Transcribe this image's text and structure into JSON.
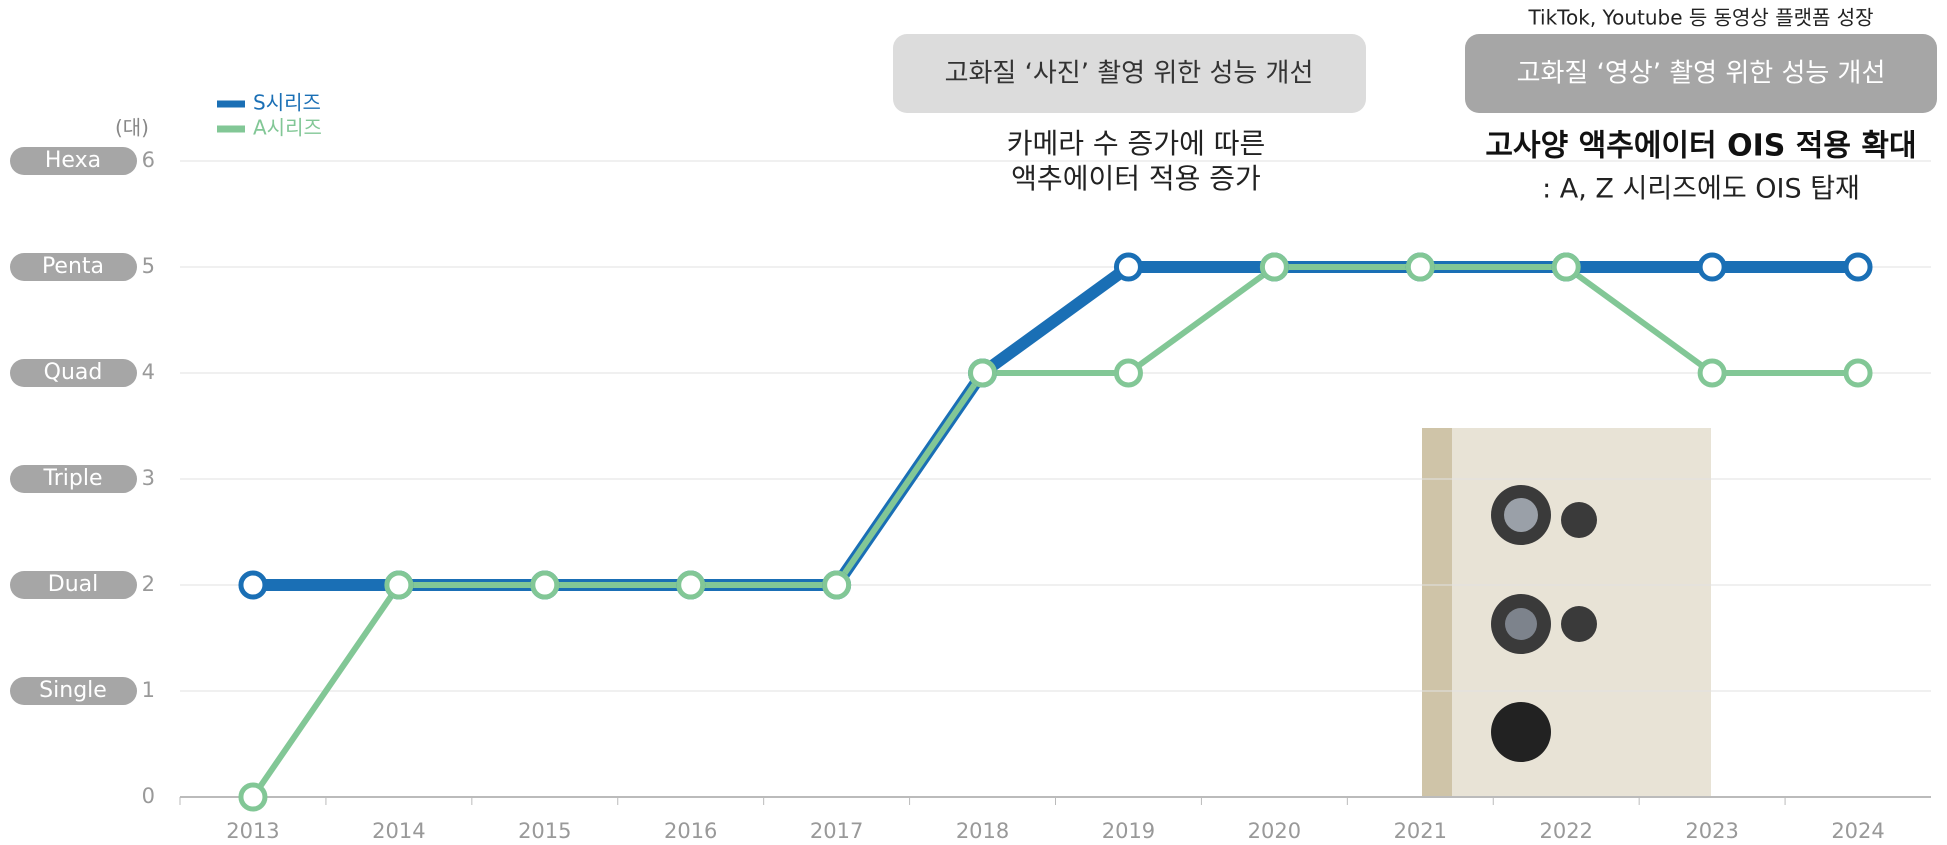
{
  "chart_data": {
    "type": "line",
    "categories": [
      "2013",
      "2014",
      "2015",
      "2016",
      "2017",
      "2018",
      "2019",
      "2020",
      "2021",
      "2022",
      "2023",
      "2024"
    ],
    "series": [
      {
        "name": "S시리즈",
        "color": "#1a6fb5",
        "values": [
          2,
          2,
          2,
          2,
          2,
          4,
          5,
          5,
          5,
          5,
          5,
          5
        ]
      },
      {
        "name": "A시리즈",
        "color": "#82c796",
        "values": [
          0,
          2,
          2,
          2,
          2,
          4,
          4,
          5,
          5,
          5,
          4,
          4
        ]
      }
    ],
    "ylim": [
      0,
      6
    ],
    "yticks": [
      0,
      1,
      2,
      3,
      4,
      5,
      6
    ],
    "grid": true,
    "y_unit": "(대)",
    "y_level_labels": [
      {
        "value": 1,
        "label": "Single"
      },
      {
        "value": 2,
        "label": "Dual"
      },
      {
        "value": 3,
        "label": "Triple"
      },
      {
        "value": 4,
        "label": "Quad"
      },
      {
        "value": 5,
        "label": "Penta"
      },
      {
        "value": 6,
        "label": "Hexa"
      }
    ],
    "annotations": {
      "photo_box": "고화질 ‘사진’ 촬영 위한 성능 개선",
      "photo_note": [
        "카메라 수 증가에 따른",
        "액추에이터 적용 증가"
      ],
      "video_top": "TikTok, Youtube 등 동영상 플랫폼 성장",
      "video_box": "고화질 ‘영상’ 촬영 위한 성능 개선",
      "video_title": "고사양 액추에이터 OIS 적용 확대",
      "video_note": ": A, Z 시리즈에도 OIS 탑재"
    }
  }
}
